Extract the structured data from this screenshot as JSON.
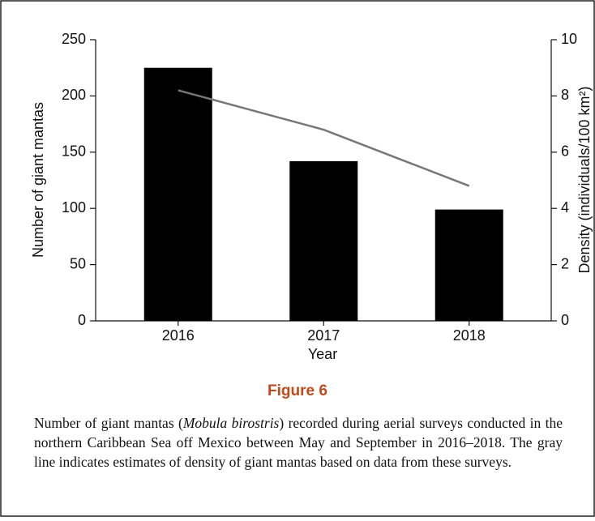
{
  "chart_data": {
    "type": "bar",
    "xlabel": "Year",
    "ylabel": "Number of giant mantas",
    "y2label": "Density (individuals/100 km²)",
    "categories": [
      "2016",
      "2017",
      "2018"
    ],
    "series": [
      {
        "type": "bar",
        "color": "#000000",
        "values": [
          225,
          142,
          99
        ]
      },
      {
        "type": "line",
        "color": "#777777",
        "axis": "y2",
        "values": [
          8.2,
          6.8,
          4.8
        ]
      }
    ],
    "ylim": [
      0,
      250
    ],
    "yticks": [
      0,
      50,
      100,
      150,
      200,
      250
    ],
    "y2lim": [
      0,
      10
    ],
    "y2ticks": [
      0,
      2,
      4,
      6,
      8,
      10
    ]
  },
  "figure_label": "Figure 6",
  "caption": {
    "before": "Number of giant mantas (",
    "italic": "Mobula birostris",
    "after": ") recorded during aerial surveys conducted in the northern Caribbean Sea off Mexico between May and September in 2016–2018. The gray line indicates estimates of density of giant mantas based on data from these surveys."
  }
}
